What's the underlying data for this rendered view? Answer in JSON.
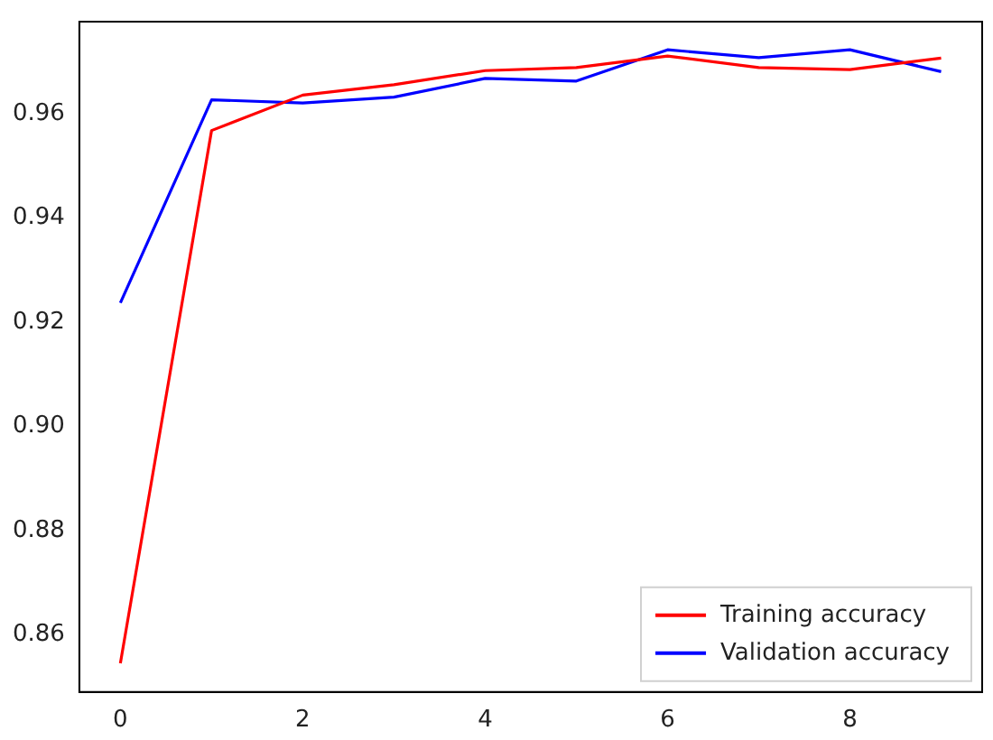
{
  "chart_data": {
    "type": "line",
    "x": [
      0,
      1,
      2,
      3,
      4,
      5,
      6,
      7,
      8,
      9
    ],
    "series": [
      {
        "name": "Training accuracy",
        "color": "#ff0000",
        "values": [
          0.8545,
          0.9568,
          0.9636,
          0.9656,
          0.9683,
          0.9689,
          0.9711,
          0.9689,
          0.9685,
          0.9707
        ]
      },
      {
        "name": "Validation accuracy",
        "color": "#0000ff",
        "values": [
          0.9237,
          0.9627,
          0.9621,
          0.9632,
          0.9668,
          0.9663,
          0.9723,
          0.9708,
          0.9723,
          0.9681
        ]
      }
    ],
    "xlim": [
      -0.45,
      9.45
    ],
    "ylim": [
      0.849,
      0.9777
    ],
    "xticks": [
      0,
      2,
      4,
      6,
      8
    ],
    "yticks": [
      {
        "value": 0.86,
        "label": "0.86"
      },
      {
        "value": 0.88,
        "label": "0.88"
      },
      {
        "value": 0.9,
        "label": "0.90"
      },
      {
        "value": 0.92,
        "label": "0.92"
      },
      {
        "value": 0.94,
        "label": "0.94"
      },
      {
        "value": 0.96,
        "label": "0.96"
      }
    ],
    "grid": false,
    "legend": "bottom right",
    "marker": "none",
    "line_style": "solid"
  }
}
